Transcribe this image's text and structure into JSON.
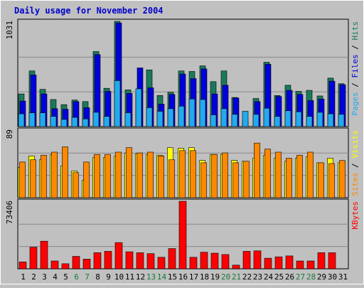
{
  "chart_data": {
    "type": "bar",
    "title": "Daily usage for November 2004",
    "categories": [
      "1",
      "2",
      "3",
      "4",
      "5",
      "6",
      "7",
      "8",
      "9",
      "10",
      "11",
      "12",
      "13",
      "14",
      "15",
      "16",
      "17",
      "18",
      "19",
      "20",
      "21",
      "22",
      "23",
      "24",
      "25",
      "26",
      "27",
      "28",
      "29",
      "30",
      "31"
    ],
    "weekend_days": [
      "6",
      "7",
      "13",
      "14",
      "20",
      "21",
      "27",
      "28"
    ],
    "legend_separator": " / ",
    "panels": [
      {
        "id": "hits",
        "max_label": "1031",
        "ylim": [
          0,
          1031
        ],
        "grid": true,
        "legend": [
          "Pages",
          "Files",
          "Hits"
        ],
        "series": [
          {
            "name": "Hits",
            "color": "#197a5b",
            "values": [
              320,
              545,
              365,
              265,
              215,
              260,
              245,
              735,
              375,
              1031,
              360,
              325,
              555,
              305,
              335,
              545,
              540,
              595,
              440,
              545,
              285,
              55,
              275,
              630,
              305,
              405,
              345,
              355,
              300,
              475,
              420
            ]
          },
          {
            "name": "Files",
            "color": "#0000dd",
            "values": [
              250,
              505,
              320,
              175,
              170,
              245,
              185,
              705,
              345,
              1015,
              325,
              575,
              380,
              220,
              315,
              515,
              470,
              565,
              320,
              405,
              280,
              0,
              245,
              610,
              295,
              355,
              315,
              255,
              270,
              445,
              410
            ]
          },
          {
            "name": "Pages",
            "color": "#22aaee",
            "values": [
              125,
              135,
              135,
              100,
              70,
              90,
              75,
              140,
              100,
              450,
              135,
              370,
              185,
              150,
              175,
              200,
              270,
              265,
              115,
              175,
              120,
              150,
              120,
              180,
              100,
              155,
              145,
              100,
              140,
              125,
              120
            ]
          }
        ]
      },
      {
        "id": "visits",
        "max_label": "89",
        "ylim": [
          0,
          89
        ],
        "grid": true,
        "legend": [
          "Sites",
          "/",
          "Visits"
        ],
        "series": [
          {
            "name": "Visits",
            "color": "#ffff00",
            "values": [
              40,
              55,
              50,
              57,
              42,
              35,
              23,
              53,
              53,
              55,
              59,
              58,
              57,
              56,
              66,
              65,
              66,
              49,
              57,
              57,
              49,
              48,
              52,
              56,
              52,
              48,
              52,
              54,
              46,
              52,
              46
            ]
          },
          {
            "name": "Sites",
            "color": "#ff8800",
            "values": [
              47,
              50,
              56,
              60,
              67,
              33,
              47,
              57,
              57,
              60,
              66,
              59,
              60,
              55,
              50,
              62,
              62,
              46,
              57,
              59,
              46,
              48,
              72,
              64,
              60,
              52,
              56,
              60,
              46,
              45,
              49
            ]
          }
        ]
      },
      {
        "id": "kbytes",
        "max_label": "73406",
        "ylim": [
          0,
          73406
        ],
        "grid": true,
        "legend": [
          "KBytes"
        ],
        "series": [
          {
            "name": "KBytes",
            "color": "#ff0000",
            "values": [
              7500,
              23500,
              30000,
              8500,
              5500,
              13500,
              10500,
              17500,
              19000,
              28500,
              18500,
              17500,
              16500,
              12500,
              22000,
              73406,
              12500,
              18000,
              17000,
              15500,
              4000,
              19000,
              19500,
              11500,
              13000,
              14000,
              8500,
              8500,
              17500,
              17500,
              0
            ]
          }
        ]
      }
    ]
  }
}
